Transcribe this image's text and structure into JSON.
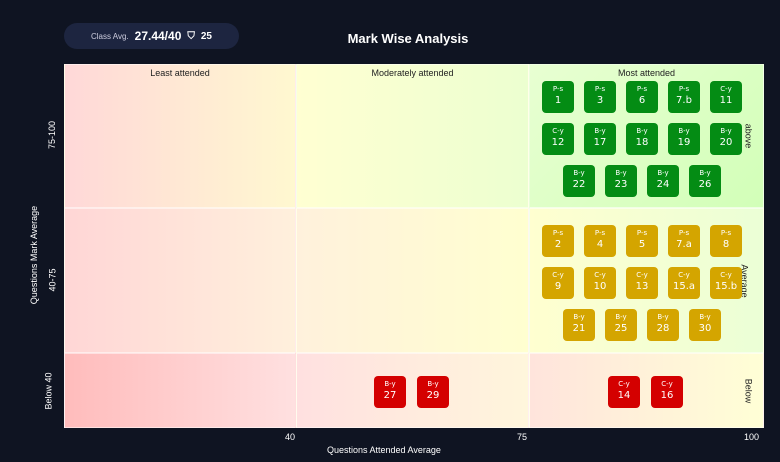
{
  "header": {
    "class_avg_label": "Class Avg.",
    "class_avg_value": "27.44/40",
    "count_icon": "students-icon",
    "count": "25",
    "title": "Mark Wise Analysis"
  },
  "chart_data": {
    "type": "table",
    "title": "Mark Wise Analysis",
    "xlabel": "Questions Attended Average",
    "ylabel": "Questions Mark Average",
    "x_ticks": [
      "40",
      "75",
      "100"
    ],
    "columns": [
      "Least attended",
      "Moderately attended",
      "Most attended"
    ],
    "rows": [
      {
        "y_tick": "75-100",
        "label": "above"
      },
      {
        "y_tick": "40-75",
        "label": "Average"
      },
      {
        "y_tick": "Below 40",
        "label": "Below"
      }
    ],
    "colors": {
      "above": "#048c14",
      "Average": "#d4a500",
      "Below": "#d40000"
    },
    "cells": [
      {
        "row": 0,
        "col": 2,
        "items": [
          [
            "P-s",
            "1"
          ],
          [
            "P-s",
            "3"
          ],
          [
            "P-s",
            "6"
          ],
          [
            "P-s",
            "7.b"
          ],
          [
            "C-y",
            "11"
          ],
          [
            "C-y",
            "12"
          ],
          [
            "B-y",
            "17"
          ],
          [
            "B-y",
            "18"
          ],
          [
            "B-y",
            "19"
          ],
          [
            "B-y",
            "20"
          ],
          [
            "B-y",
            "22"
          ],
          [
            "B-y",
            "23"
          ],
          [
            "B-y",
            "24"
          ],
          [
            "B-y",
            "26"
          ]
        ]
      },
      {
        "row": 1,
        "col": 2,
        "items": [
          [
            "P-s",
            "2"
          ],
          [
            "P-s",
            "4"
          ],
          [
            "P-s",
            "5"
          ],
          [
            "P-s",
            "7.a"
          ],
          [
            "P-s",
            "8"
          ],
          [
            "C-y",
            "9"
          ],
          [
            "C-y",
            "10"
          ],
          [
            "C-y",
            "13"
          ],
          [
            "C-y",
            "15.a"
          ],
          [
            "C-y",
            "15.b"
          ],
          [
            "B-y",
            "21"
          ],
          [
            "B-y",
            "25"
          ],
          [
            "B-y",
            "28"
          ],
          [
            "B-y",
            "30"
          ]
        ]
      },
      {
        "row": 2,
        "col": 1,
        "items": [
          [
            "B-y",
            "27"
          ],
          [
            "B-y",
            "29"
          ]
        ]
      },
      {
        "row": 2,
        "col": 2,
        "items": [
          [
            "C-y",
            "14"
          ],
          [
            "C-y",
            "16"
          ]
        ]
      }
    ]
  }
}
